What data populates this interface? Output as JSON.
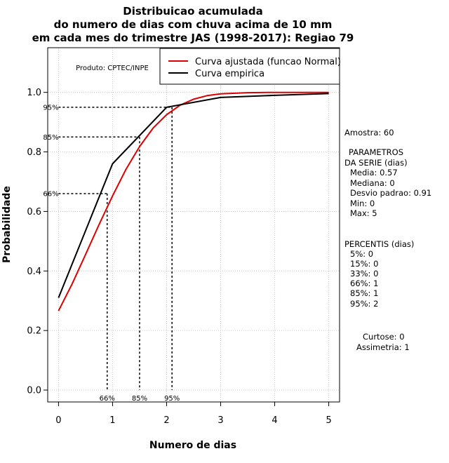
{
  "chart_data": {
    "type": "line",
    "title_lines": [
      "Distribuicao acumulada",
      "do numero de dias com chuva acima de 10 mm",
      "em cada mes do trimestre JAS (1998-2017): Regiao 79"
    ],
    "xlabel": "Numero de dias",
    "ylabel": "Probabilidade",
    "xlim": [
      -0.2,
      5.2
    ],
    "ylim": [
      -0.04,
      1.15
    ],
    "xticks": [
      0,
      1,
      2,
      3,
      4,
      5
    ],
    "xtick_labels": [
      "0",
      "1",
      "2",
      "3",
      "4",
      "5"
    ],
    "yticks": [
      0.0,
      0.2,
      0.4,
      0.6,
      0.8,
      1.0
    ],
    "ytick_labels": [
      "0.0",
      "0.2",
      "0.4",
      "0.6",
      "0.8",
      "1.0"
    ],
    "grid": true,
    "legend_position": "top-right",
    "series": [
      {
        "name": "Curva ajustada (funcao Normal)",
        "color": "#dd0000",
        "x": [
          0,
          0.25,
          0.5,
          0.75,
          1.0,
          1.25,
          1.5,
          1.75,
          2.0,
          2.25,
          2.5,
          2.75,
          3.0,
          3.5,
          4.0,
          4.5,
          5.0
        ],
        "y": [
          0.266,
          0.356,
          0.455,
          0.556,
          0.652,
          0.742,
          0.818,
          0.88,
          0.925,
          0.957,
          0.977,
          0.989,
          0.995,
          0.999,
          1.0,
          1.0,
          1.0
        ]
      },
      {
        "name": "Curva empirica",
        "color": "#000000",
        "x": [
          0,
          1,
          2,
          3,
          4,
          5
        ],
        "y": [
          0.31,
          0.76,
          0.95,
          0.983,
          0.99,
          0.996
        ]
      }
    ],
    "percentile_markers": [
      {
        "label": "66%",
        "x": 0.9,
        "y": 0.66
      },
      {
        "label": "85%",
        "x": 1.5,
        "y": 0.85
      },
      {
        "label": "95%",
        "x": 2.1,
        "y": 0.95
      }
    ],
    "product_label": "Produto: CPTEC/INPE"
  },
  "side_panel": {
    "amostra": "Amostra: 60",
    "param_title_1": "PARAMETROS",
    "param_title_2": "DA SERIE (dias)",
    "media": "Media: 0.57",
    "mediana": "Mediana: 0",
    "desvio": "Desvio padrao: 0.91",
    "min": "Min: 0",
    "max": "Max: 5",
    "perc_title": "PERCENTIS (dias)",
    "p5": "5%: 0",
    "p15": "15%: 0",
    "p33": "33%: 0",
    "p66": "66%: 1",
    "p85": "85%: 1",
    "p95": "95%: 2",
    "curtose": "Curtose: 0",
    "assimetria": "Assimetria: 1"
  }
}
